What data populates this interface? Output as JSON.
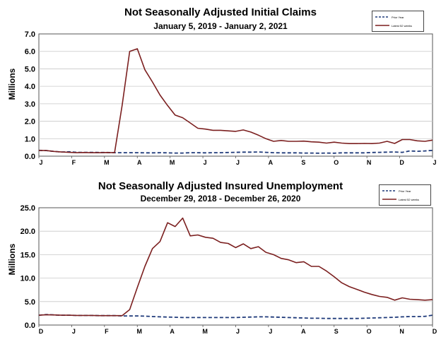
{
  "chart_data": [
    {
      "type": "line",
      "title": "Not Seasonally Adjusted Initial Claims",
      "subtitle": "January 5, 2019  - January 2, 2021",
      "ylabel": "Millions",
      "ylim": [
        0,
        7
      ],
      "yticks": [
        "0.0",
        "1.0",
        "2.0",
        "3.0",
        "4.0",
        "5.0",
        "6.0",
        "7.0"
      ],
      "xticks": [
        "J",
        "F",
        "M",
        "A",
        "M",
        "J",
        "J",
        "A",
        "S",
        "O",
        "N",
        "D",
        "J"
      ],
      "x_range": [
        0,
        52
      ],
      "legend_position": "top-right",
      "series": [
        {
          "name": "Prior Year",
          "style": "dashed",
          "color": "#1f3a7a",
          "x": [
            0,
            1,
            2,
            3,
            4,
            5,
            6,
            7,
            8,
            9,
            10,
            11,
            12,
            13,
            14,
            15,
            16,
            17,
            18,
            19,
            20,
            21,
            22,
            23,
            24,
            25,
            26,
            27,
            28,
            29,
            30,
            31,
            32,
            33,
            34,
            35,
            36,
            37,
            38,
            39,
            40,
            41,
            42,
            43,
            44,
            45,
            46,
            47,
            48,
            49,
            50,
            51,
            52
          ],
          "values": [
            0.33,
            0.32,
            0.27,
            0.24,
            0.25,
            0.22,
            0.22,
            0.22,
            0.21,
            0.21,
            0.2,
            0.2,
            0.2,
            0.2,
            0.19,
            0.19,
            0.2,
            0.19,
            0.18,
            0.18,
            0.2,
            0.2,
            0.19,
            0.2,
            0.2,
            0.21,
            0.22,
            0.23,
            0.23,
            0.24,
            0.22,
            0.2,
            0.19,
            0.19,
            0.19,
            0.18,
            0.18,
            0.17,
            0.18,
            0.17,
            0.19,
            0.19,
            0.19,
            0.19,
            0.21,
            0.22,
            0.23,
            0.24,
            0.22,
            0.3,
            0.28,
            0.3,
            0.33
          ]
        },
        {
          "name": "Latest 52 weeks",
          "style": "solid",
          "color": "#7b1f1f",
          "x": [
            0,
            1,
            2,
            3,
            4,
            5,
            6,
            7,
            8,
            9,
            10,
            11,
            12,
            13,
            14,
            15,
            16,
            17,
            18,
            19,
            20,
            21,
            22,
            23,
            24,
            25,
            26,
            27,
            28,
            29,
            30,
            31,
            32,
            33,
            34,
            35,
            36,
            37,
            38,
            39,
            40,
            41,
            42,
            43,
            44,
            45,
            46,
            47,
            48,
            49,
            50,
            51,
            52
          ],
          "values": [
            0.33,
            0.32,
            0.27,
            0.24,
            0.22,
            0.2,
            0.21,
            0.2,
            0.2,
            0.21,
            0.2,
            2.9,
            6.0,
            6.15,
            4.95,
            4.25,
            3.5,
            2.9,
            2.35,
            2.2,
            1.9,
            1.6,
            1.55,
            1.48,
            1.48,
            1.45,
            1.42,
            1.5,
            1.38,
            1.2,
            1.0,
            0.85,
            0.9,
            0.85,
            0.85,
            0.86,
            0.82,
            0.8,
            0.75,
            0.8,
            0.75,
            0.72,
            0.72,
            0.73,
            0.72,
            0.75,
            0.85,
            0.73,
            0.95,
            0.95,
            0.88,
            0.85,
            0.92
          ]
        }
      ]
    },
    {
      "type": "line",
      "title": "Not Seasonally Adjusted Insured Unemployment",
      "subtitle": "December 29, 2018 - December 26, 2020",
      "ylabel": "Millions",
      "ylim": [
        0,
        25
      ],
      "yticks": [
        "0.0",
        "5.0",
        "10.0",
        "15.0",
        "20.0",
        "25.0"
      ],
      "xticks": [
        "D",
        "J",
        "F",
        "M",
        "A",
        "M",
        "J",
        "J",
        "A",
        "S",
        "O",
        "N",
        "D"
      ],
      "x_range": [
        0,
        52
      ],
      "legend_position": "top-right",
      "series": [
        {
          "name": "Prior Year",
          "style": "dashed",
          "color": "#1f3a7a",
          "x": [
            0,
            1,
            2,
            3,
            4,
            5,
            6,
            7,
            8,
            9,
            10,
            11,
            12,
            13,
            14,
            15,
            16,
            17,
            18,
            19,
            20,
            21,
            22,
            23,
            24,
            25,
            26,
            27,
            28,
            29,
            30,
            31,
            32,
            33,
            34,
            35,
            36,
            37,
            38,
            39,
            40,
            41,
            42,
            43,
            44,
            45,
            46,
            47,
            48,
            49,
            50,
            51,
            52
          ],
          "values": [
            2.1,
            2.25,
            2.15,
            2.1,
            2.1,
            2.05,
            2.05,
            2.05,
            2.0,
            2.0,
            2.0,
            1.95,
            1.95,
            1.95,
            1.9,
            1.8,
            1.75,
            1.7,
            1.65,
            1.6,
            1.6,
            1.6,
            1.6,
            1.6,
            1.6,
            1.6,
            1.6,
            1.65,
            1.7,
            1.75,
            1.75,
            1.7,
            1.65,
            1.6,
            1.55,
            1.5,
            1.45,
            1.45,
            1.4,
            1.4,
            1.4,
            1.4,
            1.4,
            1.45,
            1.5,
            1.55,
            1.6,
            1.65,
            1.75,
            1.8,
            1.8,
            1.85,
            2.1
          ]
        },
        {
          "name": "Latest 52 weeks",
          "style": "solid",
          "color": "#7b1f1f",
          "x": [
            0,
            1,
            2,
            3,
            4,
            5,
            6,
            7,
            8,
            9,
            10,
            11,
            12,
            13,
            14,
            15,
            16,
            17,
            18,
            19,
            20,
            21,
            22,
            23,
            24,
            25,
            26,
            27,
            28,
            29,
            30,
            31,
            32,
            33,
            34,
            35,
            36,
            37,
            38,
            39,
            40,
            41,
            42,
            43,
            44,
            45,
            46,
            47,
            48,
            49,
            50,
            51,
            52
          ],
          "values": [
            2.1,
            2.2,
            2.15,
            2.1,
            2.1,
            2.05,
            2.05,
            2.05,
            2.0,
            2.0,
            2.0,
            2.0,
            3.3,
            8.0,
            12.5,
            16.3,
            17.8,
            21.8,
            21.0,
            22.8,
            19.0,
            19.2,
            18.7,
            18.5,
            17.6,
            17.4,
            16.5,
            17.3,
            16.3,
            16.7,
            15.5,
            15.0,
            14.2,
            13.9,
            13.3,
            13.5,
            12.5,
            12.5,
            11.5,
            10.3,
            9.0,
            8.2,
            7.6,
            7.0,
            6.5,
            6.1,
            5.9,
            5.3,
            5.8,
            5.5,
            5.4,
            5.3,
            5.4
          ]
        }
      ]
    }
  ]
}
